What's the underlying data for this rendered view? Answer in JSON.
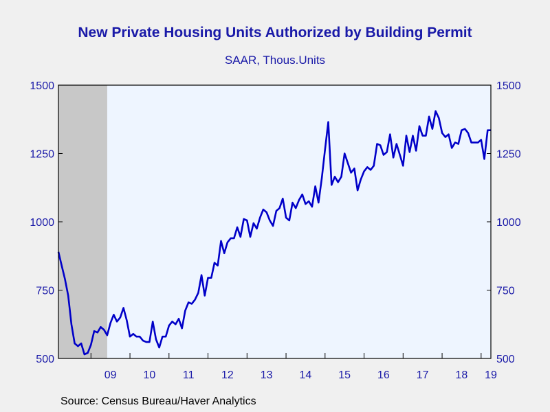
{
  "chart_data": {
    "type": "line",
    "title": "New Private Housing Units Authorized by Building Permit",
    "subtitle": "SAAR, Thous.Units",
    "source": "Source:  Census Bureau/Haver Analytics",
    "ylim": [
      500,
      1500
    ],
    "yticks": [
      500,
      750,
      1000,
      1250,
      1500
    ],
    "ytick_labels": [
      "500",
      "750",
      "1000",
      "1250",
      "1500"
    ],
    "xlim": [
      "2008-03",
      "2019-04"
    ],
    "xtick_labels": [
      {
        "label": "09",
        "date": "2009-07"
      },
      {
        "label": "10",
        "date": "2010-07"
      },
      {
        "label": "11",
        "date": "2011-07"
      },
      {
        "label": "12",
        "date": "2012-07"
      },
      {
        "label": "13",
        "date": "2013-07"
      },
      {
        "label": "14",
        "date": "2014-07"
      },
      {
        "label": "15",
        "date": "2015-07"
      },
      {
        "label": "16",
        "date": "2016-07"
      },
      {
        "label": "17",
        "date": "2017-07"
      },
      {
        "label": "18",
        "date": "2018-07"
      },
      {
        "label": "19",
        "date": "2019-04"
      }
    ],
    "recession": {
      "start": "2008-03",
      "end": "2009-06"
    },
    "grid": false,
    "colors": {
      "line": "#0000c8",
      "plot_bg": "#eef5ff",
      "recession": "#c8c8c8",
      "text": "#1a1aa8"
    },
    "series": [
      {
        "x": [
          "2008-03",
          "2008-04",
          "2008-05",
          "2008-06",
          "2008-07",
          "2008-08",
          "2008-09",
          "2008-10",
          "2008-11",
          "2008-12",
          "2009-01",
          "2009-02",
          "2009-03",
          "2009-04",
          "2009-05",
          "2009-06",
          "2009-07",
          "2009-08",
          "2009-09",
          "2009-10",
          "2009-11",
          "2009-12",
          "2010-01",
          "2010-02",
          "2010-03",
          "2010-04",
          "2010-05",
          "2010-06",
          "2010-07",
          "2010-08",
          "2010-09",
          "2010-10",
          "2010-11",
          "2010-12",
          "2011-01",
          "2011-02",
          "2011-03",
          "2011-04",
          "2011-05",
          "2011-06",
          "2011-07",
          "2011-08",
          "2011-09",
          "2011-10",
          "2011-11",
          "2011-12",
          "2012-01",
          "2012-02",
          "2012-03",
          "2012-04",
          "2012-05",
          "2012-06",
          "2012-07",
          "2012-08",
          "2012-09",
          "2012-10",
          "2012-11",
          "2012-12",
          "2013-01",
          "2013-02",
          "2013-03",
          "2013-04",
          "2013-05",
          "2013-06",
          "2013-07",
          "2013-08",
          "2013-09",
          "2013-10",
          "2013-11",
          "2013-12",
          "2014-01",
          "2014-02",
          "2014-03",
          "2014-04",
          "2014-05",
          "2014-06",
          "2014-07",
          "2014-08",
          "2014-09",
          "2014-10",
          "2014-11",
          "2014-12",
          "2015-01",
          "2015-02",
          "2015-03",
          "2015-04",
          "2015-05",
          "2015-06",
          "2015-07",
          "2015-08",
          "2015-09",
          "2015-10",
          "2015-11",
          "2015-12",
          "2016-01",
          "2016-02",
          "2016-03",
          "2016-04",
          "2016-05",
          "2016-06",
          "2016-07",
          "2016-08",
          "2016-09",
          "2016-10",
          "2016-11",
          "2016-12",
          "2017-01",
          "2017-02",
          "2017-03",
          "2017-04",
          "2017-05",
          "2017-06",
          "2017-07",
          "2017-08",
          "2017-09",
          "2017-10",
          "2017-11",
          "2017-12",
          "2018-01",
          "2018-02",
          "2018-03",
          "2018-04",
          "2018-05",
          "2018-06",
          "2018-07",
          "2018-08",
          "2018-09",
          "2018-10",
          "2018-11",
          "2018-12",
          "2019-01",
          "2019-02",
          "2019-03",
          "2019-04"
        ],
        "values": [
          890,
          840,
          790,
          730,
          625,
          555,
          545,
          555,
          515,
          520,
          550,
          600,
          595,
          615,
          605,
          585,
          630,
          660,
          635,
          650,
          685,
          640,
          580,
          590,
          580,
          580,
          565,
          560,
          560,
          635,
          570,
          540,
          580,
          580,
          620,
          635,
          625,
          645,
          610,
          675,
          705,
          700,
          715,
          740,
          805,
          730,
          795,
          795,
          850,
          840,
          930,
          885,
          925,
          940,
          940,
          980,
          945,
          1010,
          1005,
          945,
          995,
          975,
          1015,
          1045,
          1035,
          1005,
          985,
          1040,
          1050,
          1085,
          1015,
          1005,
          1070,
          1050,
          1080,
          1100,
          1065,
          1075,
          1055,
          1130,
          1070,
          1160,
          1265,
          1365,
          1135,
          1165,
          1145,
          1165,
          1250,
          1215,
          1180,
          1195,
          1115,
          1155,
          1185,
          1200,
          1190,
          1205,
          1285,
          1280,
          1245,
          1255,
          1320,
          1235,
          1285,
          1245,
          1205,
          1315,
          1255,
          1315,
          1260,
          1350,
          1315,
          1315,
          1385,
          1340,
          1405,
          1380,
          1325,
          1310,
          1320,
          1270,
          1290,
          1285,
          1335,
          1340,
          1325,
          1290,
          1290,
          1290,
          1300,
          1230,
          1335,
          1335
        ]
      }
    ]
  }
}
